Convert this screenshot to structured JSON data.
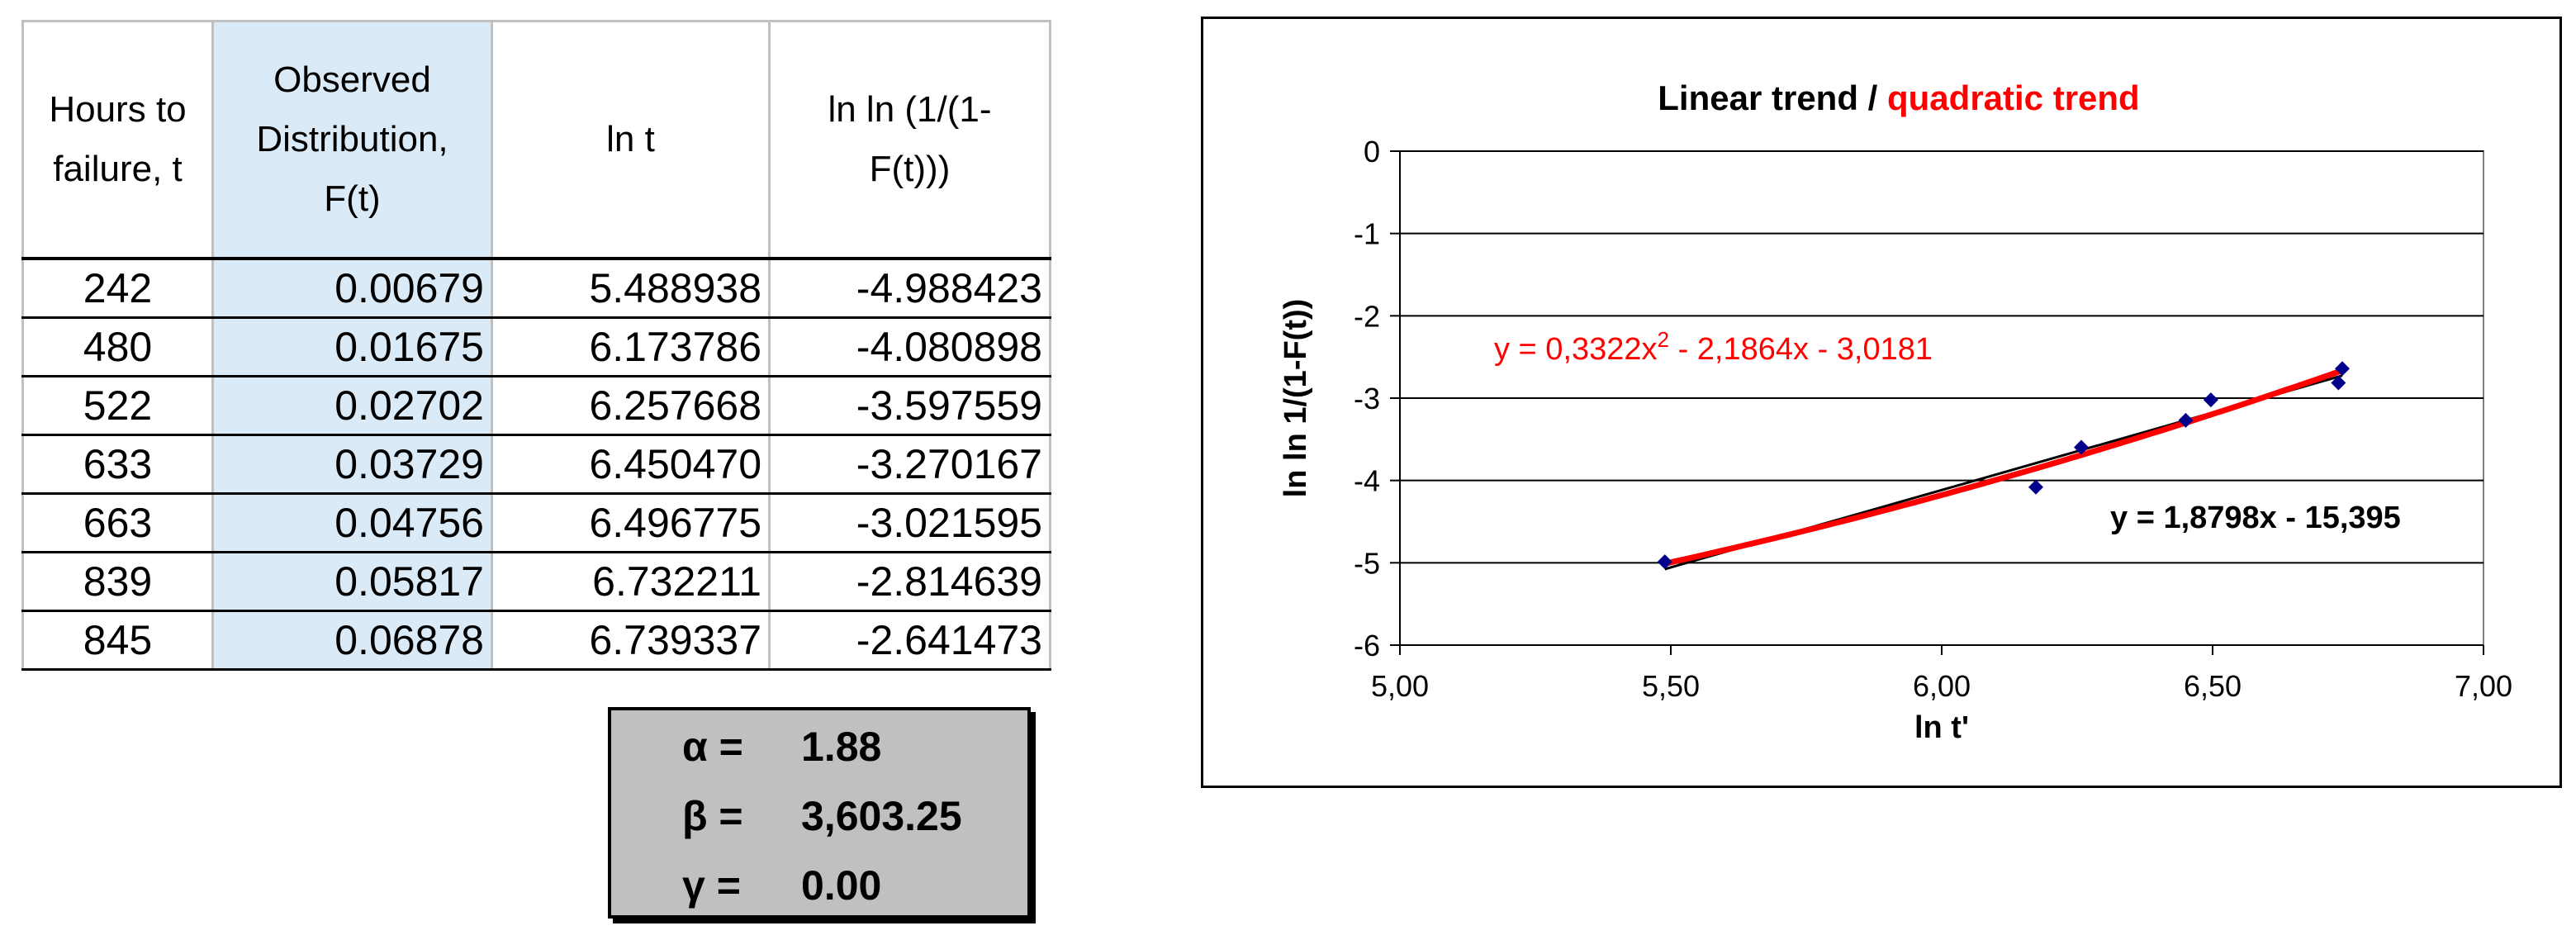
{
  "table": {
    "headers": [
      "Hours to\nfailure, t",
      "Observed\nDistribution,\nF(t)",
      "ln t",
      "ln ln (1/(1-\nF(t)))"
    ],
    "rows": [
      [
        "242",
        "0.00679",
        "5.488938",
        "-4.988423"
      ],
      [
        "480",
        "0.01675",
        "6.173786",
        "-4.080898"
      ],
      [
        "522",
        "0.02702",
        "6.257668",
        "-3.597559"
      ],
      [
        "633",
        "0.03729",
        "6.450470",
        "-3.270167"
      ],
      [
        "663",
        "0.04756",
        "6.496775",
        "-3.021595"
      ],
      [
        "839",
        "0.05817",
        "6.732211",
        "-2.814639"
      ],
      [
        "845",
        "0.06878",
        "6.739337",
        "-2.641473"
      ]
    ]
  },
  "params": [
    {
      "name": "α =",
      "value": "1.88"
    },
    {
      "name": "β =",
      "value": "3,603.25"
    },
    {
      "name": "γ =",
      "value": "0.00"
    }
  ],
  "chart_data": {
    "type": "scatter",
    "title_parts": [
      {
        "text": "Linear trend / ",
        "color": "#000000"
      },
      {
        "text": "quadratic trend",
        "color": "#ff0000"
      }
    ],
    "xlabel": "ln t'",
    "ylabel": "ln ln 1/(1-F(t))",
    "xlim": [
      5.0,
      7.0
    ],
    "ylim": [
      -6,
      0
    ],
    "x_ticks": [
      "5,00",
      "5,50",
      "6,00",
      "6,50",
      "7,00"
    ],
    "y_ticks": [
      "0",
      "-1",
      "-2",
      "-3",
      "-4",
      "-5",
      "-6"
    ],
    "grid": "horizontal",
    "series": [
      {
        "marker_color": "#00008b",
        "x": [
          5.488938,
          6.173786,
          6.257668,
          6.45047,
          6.496775,
          6.732211,
          6.739337
        ],
        "y": [
          -4.988423,
          -4.080898,
          -3.597559,
          -3.270167,
          -3.021595,
          -2.814639,
          -2.641473
        ]
      }
    ],
    "trendlines": [
      {
        "kind": "linear",
        "color": "#000000",
        "coef": [
          -15.395,
          1.8798
        ],
        "label": "y = 1,8798x - 15,395",
        "label_bold": true
      },
      {
        "kind": "quadratic",
        "color": "#ff0000",
        "coef": [
          -3.0181,
          -2.1864,
          0.3322
        ],
        "label_pre": "y = 0,3322x",
        "label_sup": "2",
        "label_post": " - 2,1864x - 3,0181"
      }
    ]
  }
}
